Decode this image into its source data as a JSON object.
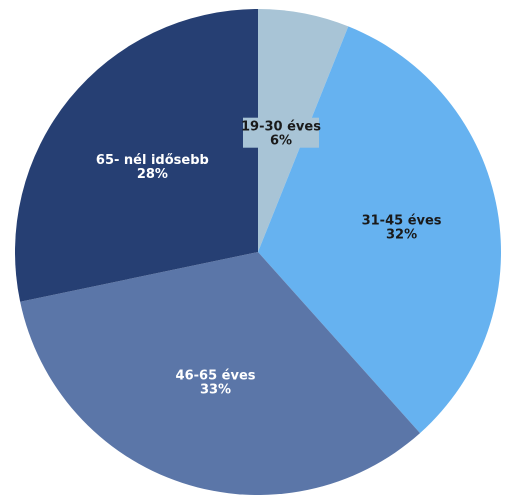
{
  "chart_data": {
    "type": "pie",
    "slices": [
      {
        "label": "19-30 éves",
        "percent_label": "6%",
        "value": 6,
        "color": "#a8c4d6",
        "text_color": "#1a1a1a",
        "label_bg": "#a8c4d6"
      },
      {
        "label": "31-45 éves",
        "percent_label": "32%",
        "value": 32,
        "color": "#66b2f0",
        "text_color": "#1a1a1a"
      },
      {
        "label": "46-65 éves",
        "percent_label": "33%",
        "value": 33,
        "color": "#5b76a8",
        "text_color": "#ffffff"
      },
      {
        "label": "65- nél idősebb",
        "percent_label": "28%",
        "value": 28,
        "color": "#263f73",
        "text_color": "#ffffff"
      }
    ]
  }
}
